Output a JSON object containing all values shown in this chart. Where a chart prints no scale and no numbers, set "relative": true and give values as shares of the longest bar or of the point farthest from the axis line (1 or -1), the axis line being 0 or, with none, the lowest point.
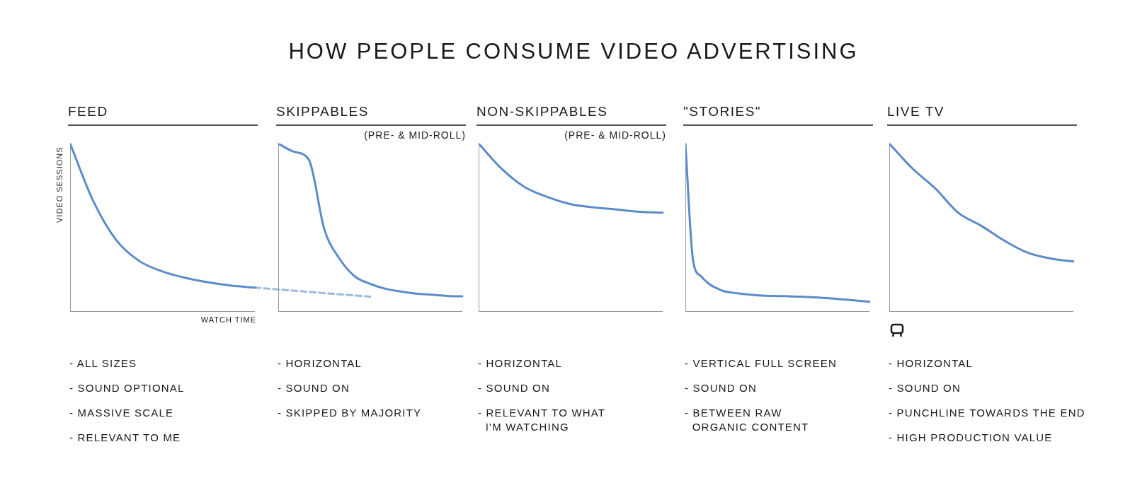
{
  "chart_data": [
    {
      "type": "other",
      "title": "HOW PEOPLE CONSUME VIDEO ADVERTISING"
    },
    {
      "type": "line",
      "title": "FEED",
      "xlabel": "WATCH TIME",
      "ylabel": "VIDEO SESSIONS",
      "relative": true,
      "marker": "none",
      "categories": [
        null,
        null,
        null,
        null,
        null,
        null,
        null,
        null,
        null,
        null,
        null,
        null,
        null,
        null
      ],
      "series": [
        {
          "color": "#5b8bc9",
          "values": [
            1,
            0.659,
            0.426,
            0.302,
            0.24,
            0.202,
            0.175,
            0.155,
            0.144,
            null,
            null,
            null,
            null,
            null
          ]
        },
        {
          "color": "#9fb9dc",
          "line_style": "dashed",
          "values": [
            null,
            null,
            null,
            null,
            null,
            null,
            null,
            null,
            0.144,
            null,
            null,
            null,
            null,
            0.09
          ]
        }
      ],
      "annotations": [
        "- ALL SIZES",
        "- SOUND OPTIONAL",
        "- MASSIVE SCALE",
        "- RELEVANT TO ME"
      ]
    },
    {
      "type": "line",
      "title": "SKIPPABLES",
      "subtitle": "(PRE- & MID-ROLL)",
      "relative": true,
      "marker": "none",
      "categories": [
        null,
        null,
        null,
        null,
        null,
        null,
        null,
        null,
        null,
        null,
        null,
        null,
        null
      ],
      "series": [
        {
          "color": "#5b8bc9",
          "values": [
            1,
            0.952,
            0.903,
            0.492,
            0.315,
            0.21,
            0.166,
            0.137,
            0.121,
            0.108,
            0.102,
            0.095,
            0.092
          ]
        }
      ],
      "annotations": [
        "- HORIZONTAL",
        "- SOUND ON",
        "- SKIPPED BY MAJORITY"
      ]
    },
    {
      "type": "line",
      "title": "NON-SKIPPABLES",
      "subtitle": "(PRE- & MID-ROLL)",
      "relative": true,
      "marker": "none",
      "categories": [
        null,
        null,
        null,
        null,
        null,
        null,
        null,
        null,
        null
      ],
      "series": [
        {
          "color": "#5b8bc9",
          "values": [
            1,
            0.85,
            0.742,
            0.682,
            0.64,
            0.621,
            0.608,
            0.595,
            0.589
          ]
        }
      ],
      "annotations": [
        "- HORIZONTAL",
        "- SOUND ON",
        "- RELEVANT TO WHAT\n  I'M WATCHING"
      ]
    },
    {
      "type": "line",
      "title": "\"STORIES\"",
      "relative": true,
      "marker": "none",
      "categories": [
        null,
        null,
        null,
        null,
        null,
        null,
        null,
        null,
        null,
        null,
        null,
        null,
        null,
        null,
        null,
        null,
        null,
        null,
        null,
        null,
        null,
        null,
        null,
        null,
        null
      ],
      "series": [
        {
          "color": "#5b8bc9",
          "values": [
            1,
            0.307,
            0.213,
            0.169,
            0.142,
            0.123,
            0.115,
            0.109,
            0.104,
            0.1,
            0.097,
            0.095,
            0.094,
            0.093,
            0.091,
            0.09,
            0.088,
            0.086,
            0.083,
            0.08,
            0.076,
            0.072,
            0.068,
            0.064,
            0.06
          ]
        }
      ],
      "annotations": [
        "- VERTICAL FULL SCREEN",
        "- SOUND ON",
        "- BETWEEN RAW\n  ORGANIC CONTENT"
      ]
    },
    {
      "type": "line",
      "title": "LIVE TV",
      "relative": true,
      "marker": "none",
      "categories": [
        null,
        null,
        null,
        null,
        null,
        null,
        null,
        null,
        null
      ],
      "series": [
        {
          "color": "#5b8bc9",
          "values": [
            1,
            0.853,
            0.733,
            0.589,
            0.511,
            0.423,
            0.352,
            0.317,
            0.299
          ]
        }
      ],
      "annotations": [
        "- HORIZONTAL",
        "- SOUND ON",
        "- PUNCHLINE TOWARDS THE END",
        "- HIGH PRODUCTION VALUE"
      ]
    }
  ]
}
